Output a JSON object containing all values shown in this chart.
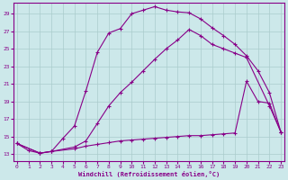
{
  "xlabel": "Windchill (Refroidissement éolien,°C)",
  "bg_color": "#cce8ea",
  "line_color": "#880088",
  "grid_color": "#aacccc",
  "x_ticks": [
    0,
    1,
    2,
    3,
    4,
    5,
    6,
    7,
    8,
    9,
    10,
    11,
    12,
    13,
    14,
    15,
    16,
    17,
    18,
    19,
    20,
    21,
    22,
    23
  ],
  "y_ticks": [
    13,
    15,
    17,
    19,
    21,
    23,
    25,
    27,
    29
  ],
  "xlim": [
    -0.3,
    23.3
  ],
  "ylim": [
    12.2,
    30.2
  ],
  "line1_x": [
    0,
    1,
    2,
    3,
    4,
    5,
    6,
    7,
    8,
    9,
    10,
    11,
    12,
    13,
    14,
    15,
    16,
    17,
    18,
    19,
    20,
    21,
    22,
    23
  ],
  "line1_y": [
    14.2,
    13.4,
    13.1,
    13.3,
    14.8,
    16.2,
    20.2,
    24.6,
    26.8,
    27.3,
    29.0,
    29.4,
    29.8,
    29.4,
    29.2,
    29.1,
    28.4,
    27.4,
    26.5,
    25.5,
    24.2,
    22.5,
    20.0,
    15.5
  ],
  "line2_x": [
    0,
    2,
    3,
    5,
    6,
    7,
    8,
    9,
    10,
    11,
    12,
    13,
    14,
    15,
    16,
    17,
    18,
    19,
    20,
    22,
    23
  ],
  "line2_y": [
    14.2,
    13.1,
    13.3,
    13.8,
    14.5,
    16.5,
    18.5,
    20.0,
    21.2,
    22.5,
    23.8,
    25.0,
    26.0,
    27.2,
    26.5,
    25.5,
    25.0,
    24.5,
    24.0,
    18.5,
    15.5
  ],
  "line3_x": [
    0,
    2,
    3,
    5,
    6,
    7,
    8,
    9,
    10,
    11,
    12,
    13,
    14,
    15,
    16,
    17,
    18,
    19,
    20,
    21,
    22,
    23
  ],
  "line3_y": [
    14.2,
    13.1,
    13.3,
    13.6,
    13.9,
    14.1,
    14.3,
    14.5,
    14.6,
    14.7,
    14.8,
    14.9,
    15.0,
    15.1,
    15.1,
    15.2,
    15.3,
    15.4,
    21.3,
    19.0,
    18.8,
    15.5
  ]
}
